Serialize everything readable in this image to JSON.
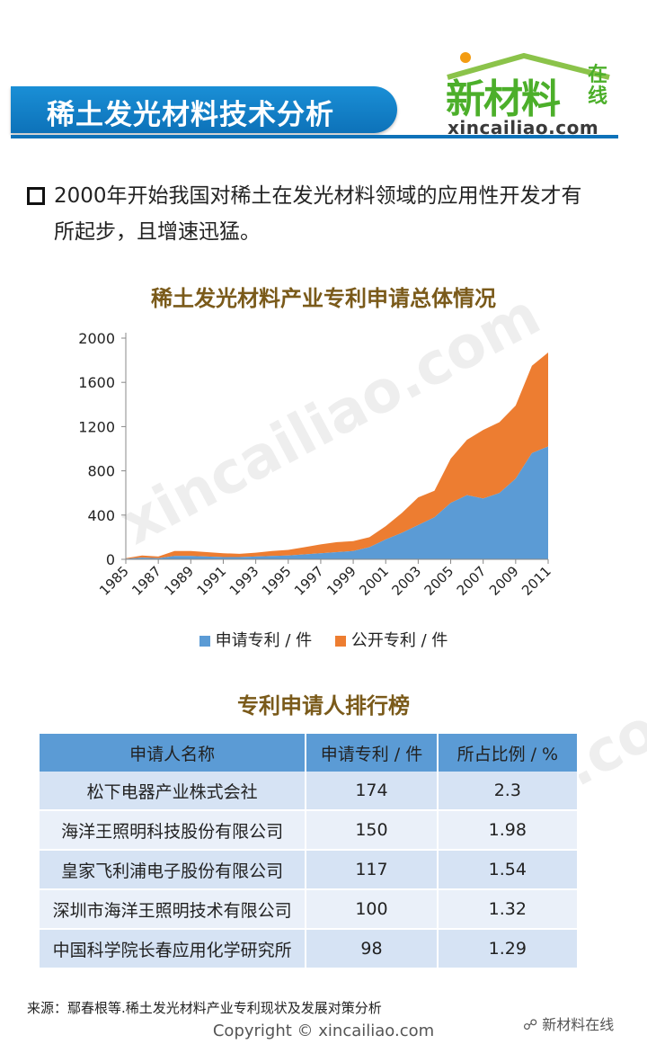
{
  "header": {
    "title": "稀土发光材料技术分析"
  },
  "logo": {
    "cn": "新材料",
    "zx": "在线",
    "url": "xincailiao.com"
  },
  "intro": {
    "text": "2000年开始我国对稀土在发光材料领域的应用性开发才有所起步，且增速迅猛。"
  },
  "watermark": "xincailiao.com",
  "chart_title": "稀土发光材料产业专利申请总体情况",
  "chart_data": {
    "type": "area",
    "title": "稀土发光材料产业专利申请总体情况",
    "x": [
      1985,
      1986,
      1987,
      1988,
      1989,
      1990,
      1991,
      1992,
      1993,
      1994,
      1995,
      1996,
      1997,
      1998,
      1999,
      2000,
      2001,
      2002,
      2003,
      2004,
      2005,
      2006,
      2007,
      2008,
      2009,
      2010,
      2011
    ],
    "x_ticks": [
      "1985",
      "1987",
      "1989",
      "1991",
      "1993",
      "1995",
      "1997",
      "1999",
      "2001",
      "2003",
      "2005",
      "2007",
      "2009",
      "2011"
    ],
    "ylim": [
      0,
      2000
    ],
    "y_ticks": [
      "0",
      "400",
      "800",
      "1200",
      "1600",
      "2000"
    ],
    "stacked": true,
    "series": [
      {
        "name": "申请专利 / 件",
        "color": "#5b9bd5",
        "values": [
          5,
          15,
          10,
          30,
          30,
          25,
          20,
          20,
          25,
          30,
          35,
          45,
          55,
          65,
          75,
          110,
          180,
          240,
          310,
          380,
          510,
          580,
          550,
          600,
          730,
          960,
          1020
        ]
      },
      {
        "name": "公开专利 / 件",
        "color": "#ed7d31",
        "values": [
          5,
          20,
          15,
          45,
          45,
          40,
          35,
          30,
          35,
          45,
          50,
          65,
          80,
          90,
          90,
          90,
          120,
          180,
          250,
          240,
          400,
          500,
          620,
          640,
          660,
          790,
          850
        ]
      }
    ],
    "legend_position": "bottom",
    "grid": false
  },
  "table": {
    "title": "专利申请人排行榜",
    "headers": [
      "申请人名称",
      "申请专利 / 件",
      "所占比例 / %"
    ],
    "rows": [
      [
        "松下电器产业株式会社",
        "174",
        "2.3"
      ],
      [
        "海洋王照明科技股份有限公司",
        "150",
        "1.98"
      ],
      [
        "皇家飞利浦电子股份有限公司",
        "117",
        "1.54"
      ],
      [
        "深圳市海洋王照明技术有限公司",
        "100",
        "1.32"
      ],
      [
        "中国科学院长春应用化学研究所",
        "98",
        "1.29"
      ]
    ]
  },
  "footer": {
    "source": "来源：鄢春根等.稀土发光材料产业专利现状及发展对策分析",
    "copyright": "Copyright © xincailiao.com",
    "wechat": "新材料在线"
  }
}
